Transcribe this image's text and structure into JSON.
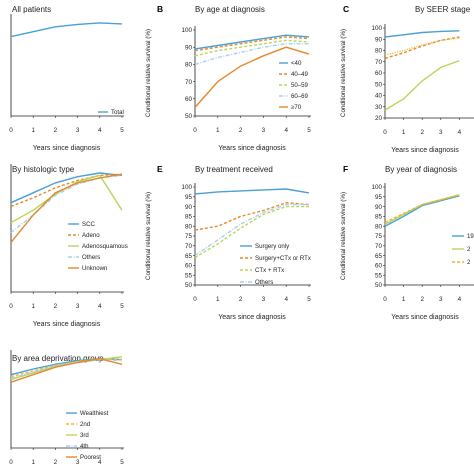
{
  "colors": {
    "blue": "#4a9fd8",
    "orange": "#e4892c",
    "gold": "#f2b233",
    "light_green": "#b6d65a",
    "light_blue": "#a9d0ec",
    "axis": "#222222"
  },
  "chart_data": [
    {
      "id": "a",
      "type": "line",
      "panel_label": "",
      "title": "All patients",
      "xlabel": "Years since diagnosis",
      "ylabel": "",
      "x": [
        0,
        1,
        2,
        3,
        4,
        5
      ],
      "ylim": [
        0,
        100
      ],
      "yticks_labeled": false,
      "legend_position": "bottom-right",
      "series": [
        {
          "name": "Total",
          "color": "#4a9fd8",
          "dash": "solid",
          "values": [
            81,
            86,
            91,
            93.5,
            95,
            94
          ]
        }
      ]
    },
    {
      "id": "b",
      "type": "line",
      "panel_label": "B",
      "title": "By age at diagnosis",
      "xlabel": "Years since diagnosis",
      "ylabel": "Conditional relative survival (%)",
      "x": [
        0,
        1,
        2,
        3,
        4,
        5
      ],
      "ylim": [
        50,
        100
      ],
      "yticks": [
        50,
        60,
        70,
        80,
        90,
        100
      ],
      "legend_position": "right",
      "series": [
        {
          "name": "<40",
          "color": "#4a9fd8",
          "dash": "solid",
          "values": [
            89,
            91,
            93,
            95,
            97,
            96
          ]
        },
        {
          "name": "40–49",
          "color": "#e4892c",
          "dash": "dash",
          "values": [
            88,
            90,
            92,
            94,
            96,
            95
          ]
        },
        {
          "name": "50–59",
          "color": "#b6d65a",
          "dash": "dash",
          "values": [
            85,
            88,
            90,
            92,
            94,
            93
          ]
        },
        {
          "name": "60–69",
          "color": "#a9d0ec",
          "dash": "dashdot",
          "values": [
            80,
            84,
            87,
            90,
            92,
            92
          ]
        },
        {
          "name": "≥70",
          "color": "#e4892c",
          "dash": "solid",
          "values": [
            55,
            70,
            79,
            85,
            90,
            86
          ]
        }
      ]
    },
    {
      "id": "c",
      "type": "line",
      "panel_label": "C",
      "title": "By SEER stage",
      "xlabel": "Years since diagnosis",
      "ylabel": "Conditional relative survival (%)",
      "x": [
        0,
        1,
        2,
        3,
        4
      ],
      "ylim": [
        20,
        100
      ],
      "yticks": [
        20,
        30,
        40,
        50,
        60,
        70,
        80,
        90,
        100
      ],
      "legend_position": "right",
      "series": [
        {
          "name": "",
          "color": "#4a9fd8",
          "dash": "solid",
          "values": [
            92,
            94,
            96,
            97,
            97.5
          ]
        },
        {
          "name": "",
          "color": "#e4892c",
          "dash": "dash",
          "values": [
            73,
            78,
            84,
            89,
            92
          ]
        },
        {
          "name": "",
          "color": "#f2b233",
          "dash": "dot",
          "values": [
            76,
            80,
            85,
            89,
            91
          ]
        },
        {
          "name": "",
          "color": "#b6d65a",
          "dash": "solid",
          "values": [
            27,
            37,
            53,
            65,
            71
          ]
        }
      ]
    },
    {
      "id": "d",
      "type": "line",
      "panel_label": "",
      "title": "By histologic type",
      "xlabel": "Years since diagnosis",
      "ylabel": "",
      "x": [
        0,
        1,
        2,
        3,
        4,
        5
      ],
      "ylim": [
        0,
        100
      ],
      "yticks_labeled": false,
      "legend_position": "center-right",
      "series": [
        {
          "name": "SCC",
          "color": "#4a9fd8",
          "dash": "solid",
          "values": [
            72,
            80,
            88,
            93,
            96,
            94
          ]
        },
        {
          "name": "Adeno",
          "color": "#e4892c",
          "dash": "dash",
          "values": [
            69,
            76,
            84,
            90,
            94,
            95
          ]
        },
        {
          "name": "Adenosquamous",
          "color": "#b6d65a",
          "dash": "solid",
          "values": [
            56,
            66,
            79,
            89,
            94,
            66
          ]
        },
        {
          "name": "Others",
          "color": "#a9d0ec",
          "dash": "dashdot",
          "values": [
            48,
            62,
            78,
            87,
            92,
            94
          ]
        },
        {
          "name": "Unknown",
          "color": "#e4892c",
          "dash": "solid",
          "values": [
            40,
            62,
            80,
            88,
            92,
            95
          ]
        }
      ]
    },
    {
      "id": "e",
      "type": "line",
      "panel_label": "E",
      "title": "By treatment received",
      "xlabel": "Years since diagnosis",
      "ylabel": "Conditional relative survival (%)",
      "x": [
        0,
        1,
        2,
        3,
        4,
        5
      ],
      "ylim": [
        50,
        100
      ],
      "yticks": [
        50,
        55,
        60,
        65,
        70,
        75,
        80,
        85,
        90,
        95,
        100
      ],
      "legend_position": "bottom-right",
      "series": [
        {
          "name": "Surgery only",
          "color": "#4a9fd8",
          "dash": "solid",
          "values": [
            96.5,
            97.5,
            98,
            98.5,
            99,
            97
          ]
        },
        {
          "name": "Surgery+CTx or RTx",
          "color": "#e4892c",
          "dash": "dash",
          "values": [
            78,
            80,
            85,
            88,
            92,
            91
          ]
        },
        {
          "name": "CTx + RTx",
          "color": "#b6d65a",
          "dash": "dash",
          "values": [
            64,
            71,
            79,
            86,
            90,
            90
          ]
        },
        {
          "name": "Others",
          "color": "#a9d0ec",
          "dash": "dashdot",
          "values": [
            65,
            73,
            81,
            87,
            91,
            91
          ]
        }
      ]
    },
    {
      "id": "f",
      "type": "line",
      "panel_label": "F",
      "title": "By year of diagnosis",
      "xlabel": "Years since diagnosis",
      "ylabel": "Conditional relative survival (%)",
      "x": [
        0,
        1,
        2,
        3,
        4
      ],
      "ylim": [
        50,
        100
      ],
      "yticks": [
        50,
        55,
        60,
        65,
        70,
        75,
        80,
        85,
        90,
        95,
        100
      ],
      "legend_position": "right",
      "series": [
        {
          "name": "19",
          "color": "#4a9fd8",
          "dash": "solid",
          "values": [
            80,
            85,
            90.5,
            93,
            95.5
          ]
        },
        {
          "name": "2",
          "color": "#b6d65a",
          "dash": "solid",
          "values": [
            81,
            86,
            91,
            93.5,
            96
          ]
        },
        {
          "name": "2",
          "color": "#f2b233",
          "dash": "dash",
          "values": [
            82,
            86.5,
            91,
            93.5,
            96
          ]
        }
      ]
    },
    {
      "id": "g",
      "type": "line",
      "panel_label": "",
      "title": "By area deprivation group",
      "xlabel": "Years since diagnosis",
      "ylabel": "",
      "x": [
        0,
        1,
        2,
        3,
        4,
        5
      ],
      "ylim": [
        0,
        100
      ],
      "yticks_labeled": false,
      "legend_position": "right",
      "series": [
        {
          "name": "Wealthiest",
          "color": "#4a9fd8",
          "dash": "solid",
          "values": [
            78,
            84,
            89,
            93,
            95,
            94
          ]
        },
        {
          "name": "2nd",
          "color": "#f2b233",
          "dash": "dash",
          "values": [
            76,
            82,
            88,
            92,
            95,
            94
          ]
        },
        {
          "name": "3rd",
          "color": "#b6d65a",
          "dash": "solid",
          "values": [
            73,
            80,
            87,
            91,
            94,
            97
          ]
        },
        {
          "name": "4th",
          "color": "#a9d0ec",
          "dash": "dashdot",
          "values": [
            74,
            81,
            87,
            91,
            94,
            93
          ]
        },
        {
          "name": "Poorest",
          "color": "#e4892c",
          "dash": "solid",
          "values": [
            70,
            78,
            86,
            91,
            95,
            89
          ]
        }
      ]
    }
  ]
}
